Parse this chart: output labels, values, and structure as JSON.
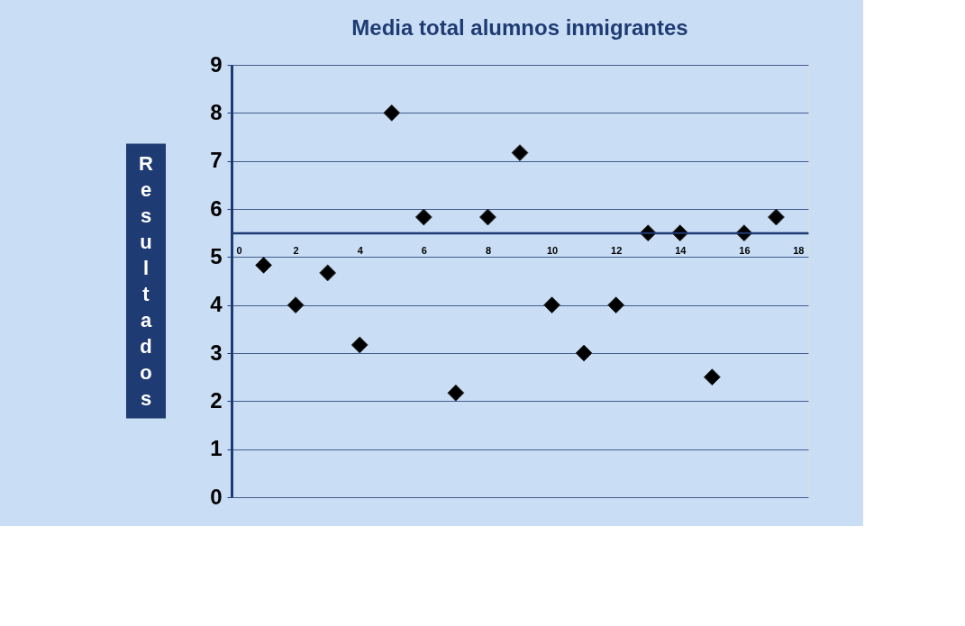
{
  "chart_data": {
    "type": "scatter",
    "title": "Media total alumnos inmigrantes",
    "ylabel": "Resultados",
    "x": [
      1,
      2,
      3,
      4,
      5,
      6,
      7,
      8,
      9,
      10,
      11,
      12,
      13,
      14,
      15,
      16,
      17
    ],
    "series": [
      {
        "color": "#000000",
        "values": [
          4.83,
          4.0,
          4.67,
          3.17,
          8.0,
          5.83,
          2.17,
          5.83,
          7.17,
          4.0,
          3.0,
          4.0,
          5.5,
          5.5,
          2.5,
          5.5,
          5.83
        ]
      }
    ],
    "xlim": [
      0,
      18
    ],
    "xticks": [
      0,
      2,
      4,
      6,
      8,
      10,
      12,
      14,
      16,
      18
    ],
    "ylim": [
      0,
      9
    ],
    "yticks": [
      0,
      1,
      2,
      3,
      4,
      5,
      6,
      7,
      8,
      9
    ],
    "ref_lines": [
      {
        "axis": "y",
        "value": 5.5,
        "color": "#1f3b73"
      }
    ],
    "grid": "y",
    "marker": "diamond"
  }
}
